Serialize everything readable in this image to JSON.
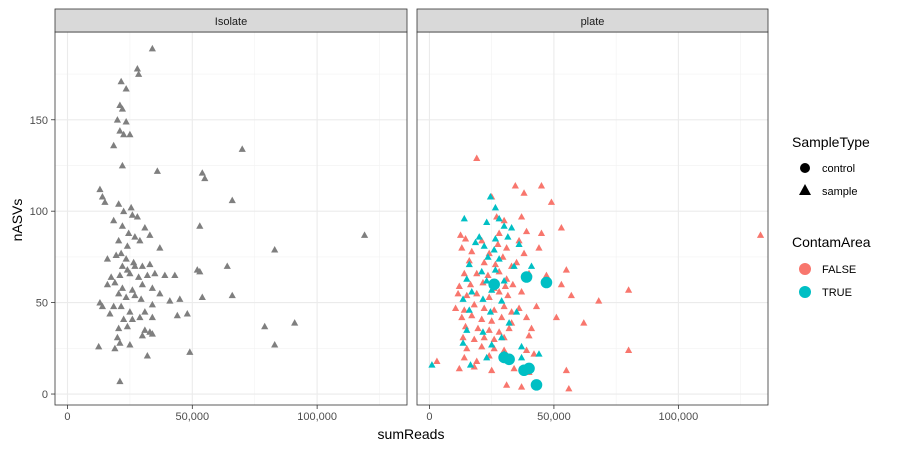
{
  "chart_data": {
    "type": "scatter",
    "xlabel": "sumReads",
    "ylabel": "nASVs",
    "xlim": [
      -5000,
      136000
    ],
    "ylim": [
      -6,
      198
    ],
    "x_ticks": [
      0,
      50000,
      100000
    ],
    "x_tick_labels": [
      "0",
      "50,000",
      "100,000"
    ],
    "y_ticks": [
      0,
      50,
      100,
      150
    ],
    "y_tick_labels": [
      "0",
      "50",
      "100",
      "150"
    ],
    "grid": true,
    "legend_position": "right",
    "facets": [
      "Isolate",
      "plate"
    ],
    "legends": {
      "shape": {
        "title": "SampleType",
        "entries": [
          {
            "label": "control",
            "shape": "circle"
          },
          {
            "label": "sample",
            "shape": "triangle"
          }
        ]
      },
      "color": {
        "title": "ContamArea",
        "entries": [
          {
            "label": "FALSE",
            "color": "#F8766D"
          },
          {
            "label": "TRUE",
            "color": "#00BFC4"
          }
        ]
      }
    },
    "colors": {
      "isolate": "#7f7f7f",
      "FALSE": "#F8766D",
      "TRUE": "#00BFC4"
    },
    "series": [
      {
        "facet": "Isolate",
        "shape": "triangle",
        "color": "#7f7f7f",
        "points": [
          [
            34000,
            189
          ],
          [
            28000,
            178
          ],
          [
            28500,
            175
          ],
          [
            21500,
            171
          ],
          [
            23500,
            167
          ],
          [
            21000,
            158
          ],
          [
            22000,
            156
          ],
          [
            20000,
            150
          ],
          [
            23500,
            149
          ],
          [
            21000,
            144
          ],
          [
            22500,
            142
          ],
          [
            25000,
            142
          ],
          [
            18500,
            136
          ],
          [
            70000,
            134
          ],
          [
            22000,
            125
          ],
          [
            36000,
            122
          ],
          [
            54000,
            121
          ],
          [
            55000,
            118
          ],
          [
            13000,
            112
          ],
          [
            14000,
            108
          ],
          [
            15000,
            105
          ],
          [
            20500,
            104
          ],
          [
            66000,
            106
          ],
          [
            22500,
            100
          ],
          [
            25500,
            102
          ],
          [
            26000,
            98
          ],
          [
            18500,
            95
          ],
          [
            22000,
            92
          ],
          [
            28000,
            97
          ],
          [
            31000,
            91
          ],
          [
            53000,
            92
          ],
          [
            24500,
            88
          ],
          [
            27000,
            86
          ],
          [
            33000,
            87
          ],
          [
            20500,
            84
          ],
          [
            24000,
            81
          ],
          [
            29000,
            84
          ],
          [
            37000,
            80
          ],
          [
            83000,
            79
          ],
          [
            119000,
            87
          ],
          [
            16000,
            74
          ],
          [
            19500,
            76
          ],
          [
            21500,
            77
          ],
          [
            23500,
            74
          ],
          [
            26500,
            72
          ],
          [
            22000,
            70
          ],
          [
            24000,
            68
          ],
          [
            27000,
            70
          ],
          [
            30000,
            70
          ],
          [
            33000,
            71
          ],
          [
            17500,
            64
          ],
          [
            21000,
            65
          ],
          [
            25000,
            66
          ],
          [
            28500,
            64
          ],
          [
            32000,
            65
          ],
          [
            35000,
            66
          ],
          [
            39000,
            65
          ],
          [
            43000,
            65
          ],
          [
            52000,
            68
          ],
          [
            53000,
            67
          ],
          [
            64000,
            70
          ],
          [
            16000,
            60
          ],
          [
            19000,
            61
          ],
          [
            22000,
            58
          ],
          [
            26000,
            57
          ],
          [
            30000,
            60
          ],
          [
            34000,
            58
          ],
          [
            20500,
            55
          ],
          [
            23500,
            53
          ],
          [
            27000,
            54
          ],
          [
            29500,
            52
          ],
          [
            37000,
            55
          ],
          [
            13000,
            50
          ],
          [
            14000,
            48
          ],
          [
            18500,
            48
          ],
          [
            21500,
            48
          ],
          [
            25000,
            45
          ],
          [
            31000,
            45
          ],
          [
            34000,
            49
          ],
          [
            41000,
            51
          ],
          [
            45000,
            52
          ],
          [
            54000,
            53
          ],
          [
            66000,
            54
          ],
          [
            17000,
            44
          ],
          [
            22500,
            41
          ],
          [
            26000,
            41
          ],
          [
            29000,
            42
          ],
          [
            34000,
            42
          ],
          [
            44000,
            43
          ],
          [
            48000,
            44
          ],
          [
            79000,
            37
          ],
          [
            91000,
            39
          ],
          [
            20500,
            36
          ],
          [
            24000,
            37
          ],
          [
            31000,
            35
          ],
          [
            33000,
            34
          ],
          [
            30000,
            32
          ],
          [
            34000,
            33
          ],
          [
            20000,
            31
          ],
          [
            12500,
            26
          ],
          [
            19000,
            25
          ],
          [
            21000,
            28
          ],
          [
            25000,
            27
          ],
          [
            32000,
            21
          ],
          [
            49000,
            23
          ],
          [
            83000,
            27
          ],
          [
            21000,
            7
          ]
        ]
      },
      {
        "facet": "plate",
        "shape": "triangle",
        "color": "#F8766D",
        "points": [
          [
            19000,
            129
          ],
          [
            34500,
            114
          ],
          [
            45000,
            114
          ],
          [
            25000,
            108
          ],
          [
            38000,
            110
          ],
          [
            49000,
            105
          ],
          [
            27000,
            97
          ],
          [
            30000,
            95
          ],
          [
            37000,
            97
          ],
          [
            53000,
            91
          ],
          [
            12500,
            87
          ],
          [
            28000,
            88
          ],
          [
            39000,
            89
          ],
          [
            45000,
            88
          ],
          [
            14500,
            85
          ],
          [
            21000,
            84
          ],
          [
            27500,
            82
          ],
          [
            31000,
            80
          ],
          [
            36000,
            84
          ],
          [
            133000,
            87
          ],
          [
            13000,
            80
          ],
          [
            17000,
            78
          ],
          [
            24000,
            77
          ],
          [
            29500,
            75
          ],
          [
            38000,
            77
          ],
          [
            44000,
            80
          ],
          [
            16000,
            73
          ],
          [
            22000,
            72
          ],
          [
            26500,
            71
          ],
          [
            33000,
            70
          ],
          [
            35000,
            72
          ],
          [
            55000,
            68
          ],
          [
            14000,
            66
          ],
          [
            19000,
            66
          ],
          [
            23500,
            65
          ],
          [
            28000,
            67
          ],
          [
            31000,
            63
          ],
          [
            40000,
            66
          ],
          [
            47000,
            65
          ],
          [
            12000,
            59
          ],
          [
            16500,
            60
          ],
          [
            21500,
            61
          ],
          [
            26000,
            58
          ],
          [
            30500,
            59
          ],
          [
            33500,
            60
          ],
          [
            53000,
            60
          ],
          [
            11500,
            55
          ],
          [
            15000,
            54
          ],
          [
            19000,
            55
          ],
          [
            24000,
            53
          ],
          [
            28000,
            56
          ],
          [
            31500,
            54
          ],
          [
            37000,
            56
          ],
          [
            57000,
            54
          ],
          [
            68000,
            51
          ],
          [
            80000,
            57
          ],
          [
            10500,
            47
          ],
          [
            14000,
            46
          ],
          [
            18000,
            49
          ],
          [
            22000,
            47
          ],
          [
            26000,
            46
          ],
          [
            30000,
            48
          ],
          [
            33000,
            45
          ],
          [
            36000,
            47
          ],
          [
            43000,
            48
          ],
          [
            13000,
            42
          ],
          [
            17000,
            43
          ],
          [
            21000,
            41
          ],
          [
            25000,
            40
          ],
          [
            29000,
            42
          ],
          [
            33000,
            39
          ],
          [
            39000,
            42
          ],
          [
            51000,
            42
          ],
          [
            62000,
            39
          ],
          [
            14500,
            37
          ],
          [
            19500,
            36
          ],
          [
            24000,
            35
          ],
          [
            28000,
            34
          ],
          [
            32000,
            36
          ],
          [
            41000,
            36
          ],
          [
            13500,
            31
          ],
          [
            18000,
            30
          ],
          [
            22000,
            31
          ],
          [
            26000,
            30
          ],
          [
            30000,
            31
          ],
          [
            40000,
            32
          ],
          [
            80000,
            24
          ],
          [
            15000,
            25
          ],
          [
            21000,
            26
          ],
          [
            26000,
            25
          ],
          [
            30000,
            24
          ],
          [
            39000,
            24
          ],
          [
            14000,
            20
          ],
          [
            19000,
            18
          ],
          [
            24000,
            21
          ],
          [
            32000,
            18
          ],
          [
            42000,
            22
          ],
          [
            3000,
            18
          ],
          [
            12000,
            14
          ],
          [
            18000,
            15
          ],
          [
            25000,
            13
          ],
          [
            34000,
            14
          ],
          [
            40000,
            12
          ],
          [
            55000,
            13
          ],
          [
            31000,
            5
          ],
          [
            37000,
            4
          ],
          [
            56000,
            3
          ]
        ]
      },
      {
        "facet": "plate",
        "shape": "triangle",
        "color": "#00BFC4",
        "points": [
          [
            24500,
            108
          ],
          [
            26500,
            102
          ],
          [
            14000,
            96
          ],
          [
            28000,
            96
          ],
          [
            23000,
            94
          ],
          [
            30000,
            92
          ],
          [
            33000,
            91
          ],
          [
            20000,
            86
          ],
          [
            26500,
            85
          ],
          [
            31500,
            86
          ],
          [
            18500,
            83
          ],
          [
            22000,
            81
          ],
          [
            26000,
            79
          ],
          [
            36000,
            82
          ],
          [
            23500,
            75
          ],
          [
            28000,
            74
          ],
          [
            16000,
            71
          ],
          [
            34000,
            70
          ],
          [
            21000,
            67
          ],
          [
            26500,
            68
          ],
          [
            41000,
            70
          ],
          [
            15000,
            63
          ],
          [
            23000,
            62
          ],
          [
            30000,
            62
          ],
          [
            17000,
            56
          ],
          [
            25000,
            57
          ],
          [
            13500,
            52
          ],
          [
            21500,
            52
          ],
          [
            29000,
            51
          ],
          [
            16000,
            46
          ],
          [
            24500,
            45
          ],
          [
            35000,
            45
          ],
          [
            32000,
            39
          ],
          [
            15000,
            35
          ],
          [
            21500,
            34
          ],
          [
            29000,
            31
          ],
          [
            13500,
            28
          ],
          [
            25000,
            27
          ],
          [
            37000,
            26
          ],
          [
            23000,
            20
          ],
          [
            30000,
            22
          ],
          [
            1000,
            16
          ],
          [
            16500,
            16
          ],
          [
            44000,
            22
          ],
          [
            37000,
            20
          ]
        ]
      },
      {
        "facet": "plate",
        "shape": "circle",
        "color": "#00BFC4",
        "points": [
          [
            26000,
            60
          ],
          [
            39000,
            64
          ],
          [
            47000,
            61
          ],
          [
            30000,
            20
          ],
          [
            32000,
            19
          ],
          [
            38000,
            13
          ],
          [
            40000,
            14
          ],
          [
            43000,
            5
          ]
        ]
      }
    ]
  }
}
